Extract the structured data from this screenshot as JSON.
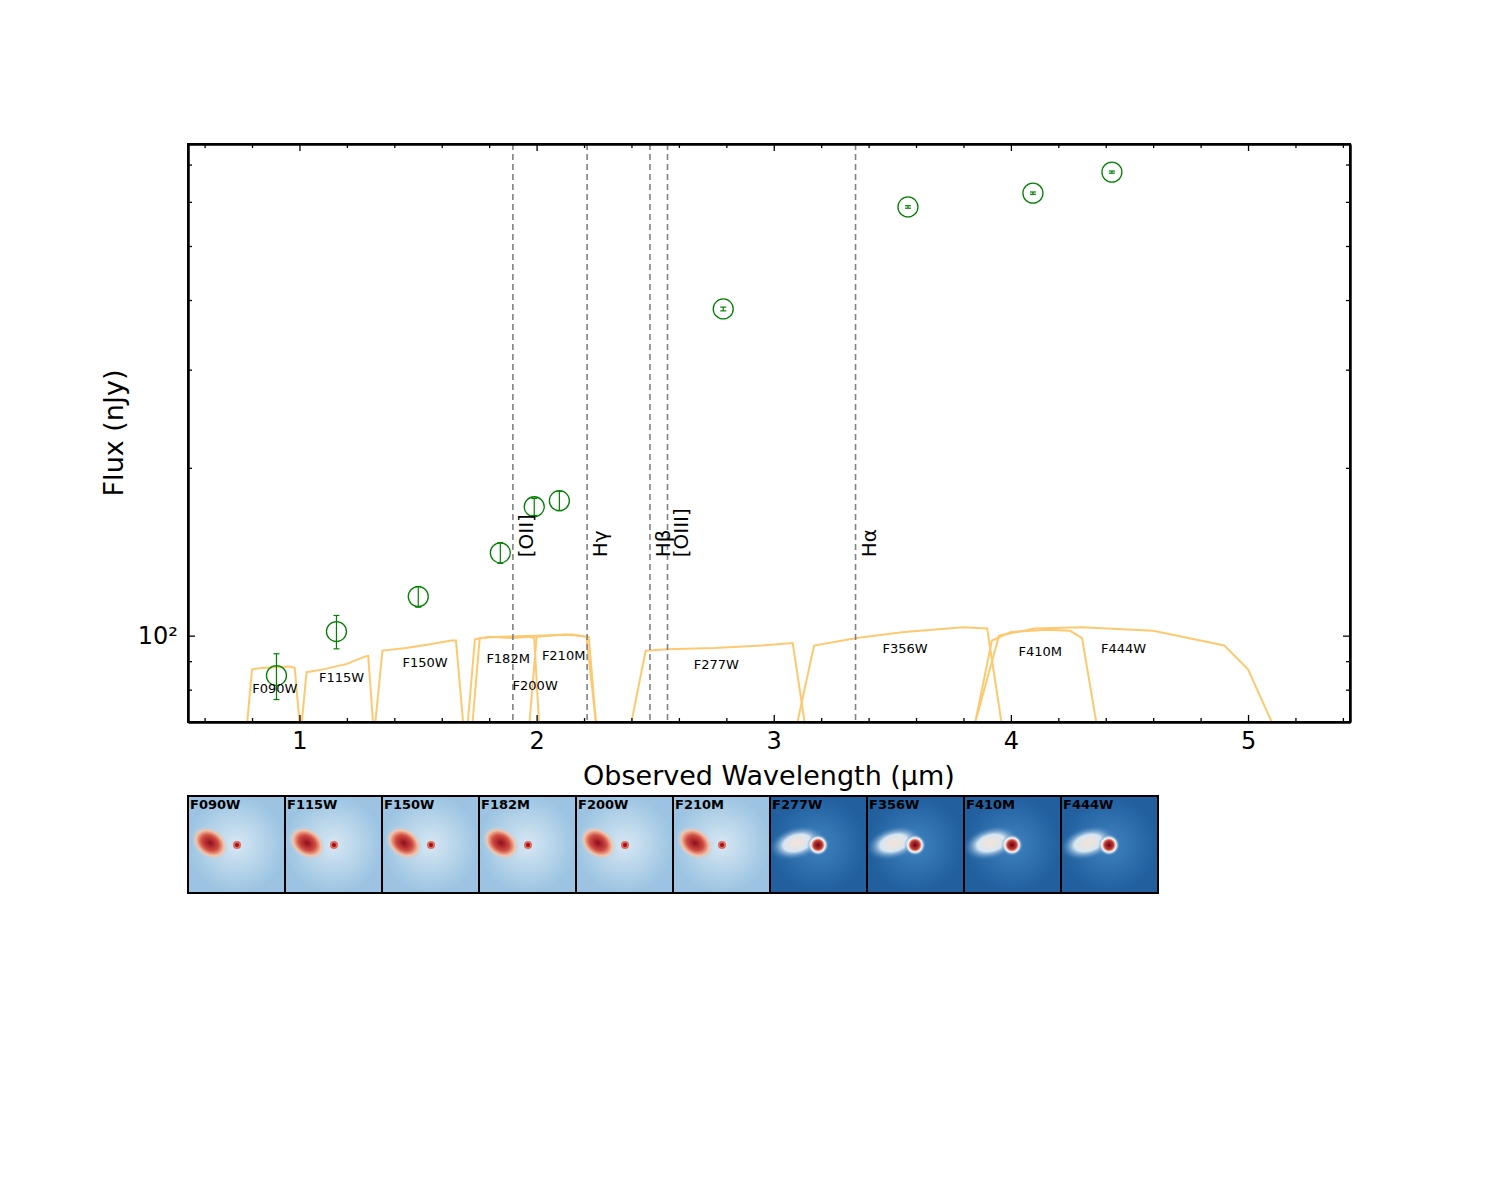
{
  "chart_data": {
    "type": "scatter",
    "x_label": "Observed Wavelength (μm)",
    "y_label": "Flux (nJy)",
    "log": "y",
    "xlim": [
      0.53,
      5.43
    ],
    "xticks": [
      1,
      2,
      3,
      4,
      5
    ],
    "xticks_minor": [
      0.6,
      0.8,
      1.2,
      1.4,
      1.6,
      1.8,
      2.2,
      2.4,
      2.6,
      2.8,
      3.2,
      3.4,
      3.6,
      3.8,
      4.2,
      4.4,
      4.6,
      4.8,
      5.2,
      5.4
    ],
    "ylim": [
      70,
      762
    ],
    "yticks": [
      {
        "value": 100,
        "label": "10²"
      }
    ],
    "yticks_minor": [
      80,
      90,
      200,
      300,
      400,
      500,
      600,
      700
    ],
    "series": [
      {
        "color": "green",
        "marker": "circle",
        "x": [
          0.903,
          1.156,
          1.501,
          1.847,
          1.99,
          2.096,
          2.787,
          3.566,
          4.093,
          4.426
        ],
        "values": [
          84.8,
          101.7,
          117.5,
          140.8,
          170.3,
          174.6,
          385.5,
          587.5,
          622,
          678.5
        ],
        "errors": [
          8,
          7,
          5,
          6,
          6,
          7,
          3,
          3,
          3,
          3
        ]
      }
    ],
    "lines": [
      {
        "label": "[OII]",
        "x": 1.9
      },
      {
        "label": "Hγ",
        "x": 2.213
      },
      {
        "label": "Hβ",
        "x": 2.478
      },
      {
        "label": "[OIII]",
        "x": 2.552
      },
      {
        "label": "Hα",
        "x": 3.345
      }
    ],
    "filters": [
      {
        "name": "F090W",
        "color": "#fdc970",
        "x": [
          0.78,
          0.8,
          0.84,
          0.9,
          0.96,
          0.98,
          1.0
        ],
        "values": [
          70,
          87,
          87.5,
          87.8,
          88,
          87.5,
          70
        ]
      },
      {
        "name": "F115W",
        "color": "#fdc970",
        "x": [
          1.01,
          1.03,
          1.1,
          1.2,
          1.27,
          1.29,
          1.31
        ],
        "values": [
          70,
          86,
          87,
          89,
          91.5,
          92,
          70
        ]
      },
      {
        "name": "F150W",
        "color": "#fdc970",
        "x": [
          1.32,
          1.35,
          1.45,
          1.55,
          1.64,
          1.66,
          1.69
        ],
        "values": [
          70,
          94,
          95,
          96.5,
          98,
          98,
          70
        ]
      },
      {
        "name": "F182M",
        "color": "#fdc970",
        "x": [
          1.71,
          1.74,
          1.8,
          1.9,
          1.97,
          1.99,
          2.01
        ],
        "values": [
          70,
          98.5,
          99.5,
          99,
          99.5,
          99,
          70
        ]
      },
      {
        "name": "F200W",
        "color": "#fdc970",
        "x": [
          1.73,
          1.76,
          1.85,
          2.0,
          2.15,
          2.21,
          2.25
        ],
        "values": [
          70,
          99,
          99.5,
          100,
          100.5,
          99.5,
          70
        ]
      },
      {
        "name": "F210M",
        "color": "#fdc970",
        "x": [
          1.97,
          2.0,
          2.05,
          2.12,
          2.18,
          2.22,
          2.25
        ],
        "values": [
          70,
          99.5,
          100,
          100.5,
          100,
          99.5,
          70
        ]
      },
      {
        "name": "F277W",
        "color": "#fdc970",
        "x": [
          2.4,
          2.46,
          2.55,
          2.75,
          2.95,
          3.08,
          3.13
        ],
        "values": [
          70,
          94,
          94.5,
          95,
          96,
          97,
          70
        ]
      },
      {
        "name": "F356W",
        "color": "#fdc970",
        "x": [
          3.1,
          3.17,
          3.35,
          3.55,
          3.8,
          3.9,
          3.96
        ],
        "values": [
          70,
          96,
          99,
          101.5,
          103.5,
          103,
          70
        ]
      },
      {
        "name": "F410M",
        "color": "#fdc970",
        "x": [
          3.85,
          3.92,
          4.0,
          4.15,
          4.25,
          4.3,
          4.36
        ],
        "values": [
          70,
          98,
          101.5,
          102.5,
          102,
          99,
          70
        ]
      },
      {
        "name": "F444W",
        "color": "#fdc970",
        "x": [
          3.85,
          3.95,
          4.1,
          4.3,
          4.6,
          4.9,
          5.0,
          5.1
        ],
        "values": [
          70,
          100,
          103,
          103.5,
          102,
          96,
          87,
          70
        ]
      }
    ],
    "cutouts": [
      "F090W",
      "F115W",
      "F150W",
      "F182M",
      "F200W",
      "F210M",
      "F277W",
      "F356W",
      "F410M",
      "F444W"
    ]
  }
}
